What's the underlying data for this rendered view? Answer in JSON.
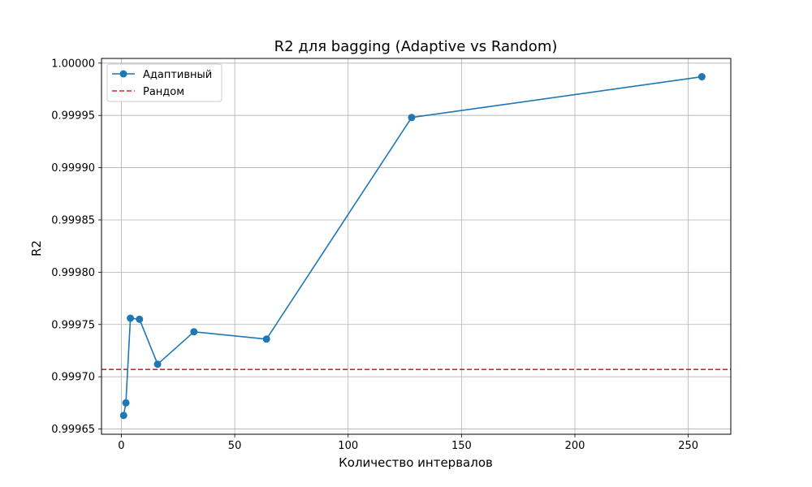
{
  "chart_data": {
    "type": "line",
    "title": "R2 для bagging (Adaptive vs Random)",
    "xlabel": "Количество интервалов",
    "ylabel": "R2",
    "xlim": [
      -8.75,
      268.75
    ],
    "ylim": [
      0.999645,
      1.0000045
    ],
    "x_ticks": [
      0,
      50,
      100,
      150,
      200,
      250
    ],
    "x_tick_labels": [
      "0",
      "50",
      "100",
      "150",
      "200",
      "250"
    ],
    "y_ticks": [
      0.99965,
      0.9997,
      0.99975,
      0.9998,
      0.99985,
      0.9999,
      0.99995,
      1.0
    ],
    "y_tick_labels": [
      "0.99965",
      "0.99970",
      "0.99975",
      "0.99980",
      "0.99985",
      "0.99990",
      "0.99995",
      "1.00000"
    ],
    "grid": true,
    "legend_position": "upper left",
    "series": [
      {
        "name": "Адаптивный",
        "style": "solid-with-circles",
        "color": "#1f77b4",
        "x": [
          1,
          2,
          4,
          8,
          16,
          32,
          64,
          128,
          256
        ],
        "y": [
          0.999663,
          0.999675,
          0.999756,
          0.999755,
          0.999712,
          0.999743,
          0.999736,
          0.999948,
          0.999987
        ]
      },
      {
        "name": "Рандом",
        "style": "dashed-horizontal",
        "color": "#d62728",
        "y": 0.999707
      }
    ]
  }
}
